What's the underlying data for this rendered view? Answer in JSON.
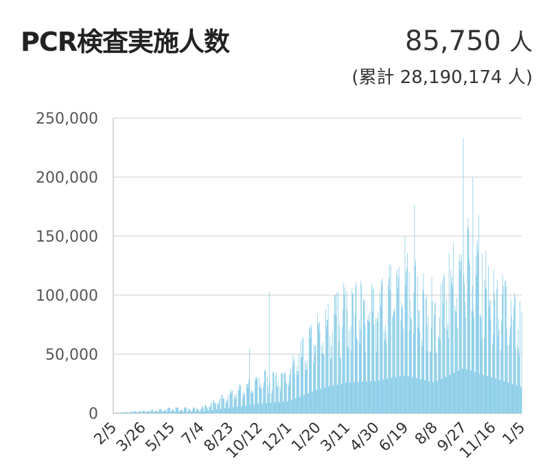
{
  "header": {
    "title": "PCR検査実施人数",
    "latest_value": "85,750",
    "unit": "人",
    "cumulative_text": "(累計 28,190,174 人)"
  },
  "colors": {
    "bar": "#7dc8e6",
    "grid": "#dddddd",
    "axis": "#c8c8c8"
  },
  "chart_data": {
    "type": "bar",
    "title": "PCR検査実施人数",
    "xlabel": "",
    "ylabel": "",
    "ylim": [
      0,
      250000
    ],
    "yticks": [
      "0",
      "50,000",
      "100,000",
      "150,000",
      "200,000",
      "250,000"
    ],
    "xtick_labels": [
      "2/5",
      "3/26",
      "5/15",
      "7/4",
      "8/23",
      "10/12",
      "12/1",
      "1/20",
      "3/11",
      "4/30",
      "6/19",
      "8/8",
      "9/27",
      "11/16",
      "1/5"
    ],
    "grid": true,
    "days_between_ticks": 49,
    "baseline_envelope": [
      [
        0,
        0
      ],
      [
        49,
        1500
      ],
      [
        98,
        3000
      ],
      [
        147,
        3000
      ],
      [
        196,
        12000
      ],
      [
        245,
        20000
      ],
      [
        294,
        25000
      ],
      [
        343,
        50000
      ],
      [
        392,
        65000
      ],
      [
        441,
        68000
      ],
      [
        490,
        80000
      ],
      [
        539,
        65000
      ],
      [
        588,
        95000
      ],
      [
        637,
        75000
      ],
      [
        686,
        55000
      ],
      [
        700,
        52000
      ]
    ],
    "spikes": [
      [
        229,
        55000
      ],
      [
        245,
        30000
      ],
      [
        262,
        103000
      ],
      [
        373,
        100000
      ],
      [
        392,
        103000
      ],
      [
        441,
        80000
      ],
      [
        490,
        150000
      ],
      [
        506,
        177000
      ],
      [
        588,
        233000
      ],
      [
        596,
        165000
      ],
      [
        604,
        200000
      ],
      [
        614,
        168000
      ],
      [
        620,
        135000
      ],
      [
        700,
        87000
      ]
    ],
    "last_value": 85750
  }
}
